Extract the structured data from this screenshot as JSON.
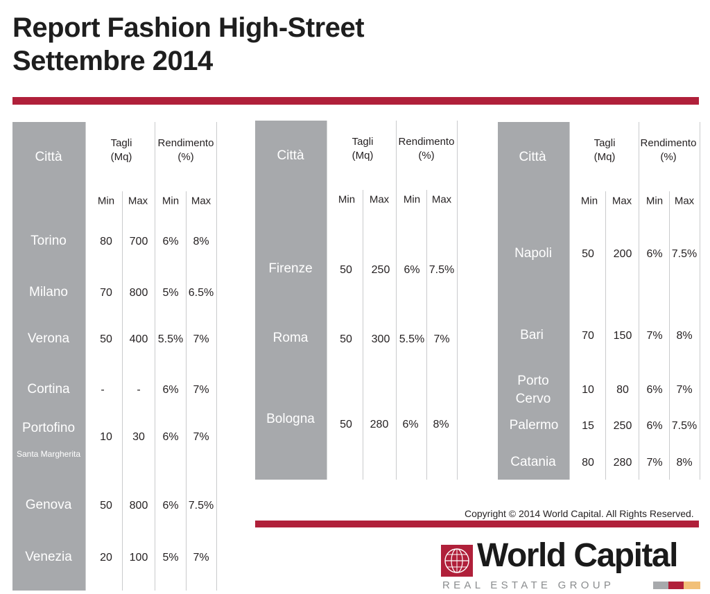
{
  "title": {
    "line1": "Report Fashion High-Street",
    "line2": "Settembre 2014"
  },
  "headers": {
    "citta": "Città",
    "tagli": [
      "Tagli",
      "(Mq)"
    ],
    "rendimento": [
      "Rendimento",
      "(%)"
    ],
    "min": "Min",
    "max": "Max"
  },
  "tables": [
    {
      "rows": [
        {
          "city": "Torino",
          "tagli_min": "80",
          "tagli_max": "700",
          "rend_min": "6%",
          "rend_max": "8%"
        },
        {
          "city": "Milano",
          "tagli_min": "70",
          "tagli_max": "800",
          "rend_min": "5%",
          "rend_max": "6.5%"
        },
        {
          "city": "Verona",
          "tagli_min": "50",
          "tagli_max": "400",
          "rend_min": "5.5%",
          "rend_max": "7%"
        },
        {
          "city": "Cortina",
          "tagli_min": "-",
          "tagli_max": "-",
          "rend_min": "6%",
          "rend_max": "7%"
        },
        {
          "city": "Portofino",
          "city_sub": "Santa Margherita",
          "tagli_min": "10",
          "tagli_max": "30",
          "rend_min": "6%",
          "rend_max": "7%"
        },
        {
          "city": "Genova",
          "tagli_min": "50",
          "tagli_max": "800",
          "rend_min": "6%",
          "rend_max": "7.5%"
        },
        {
          "city": "Venezia",
          "tagli_min": "20",
          "tagli_max": "100",
          "rend_min": "5%",
          "rend_max": "7%"
        }
      ]
    },
    {
      "rows": [
        {
          "city": "Firenze",
          "tagli_min": "50",
          "tagli_max": "250",
          "rend_min": "6%",
          "rend_max": "7.5%"
        },
        {
          "city": "Roma",
          "tagli_min": "50",
          "tagli_max": "300",
          "rend_min": "5.5%",
          "rend_max": "7%"
        },
        {
          "city": "Bologna",
          "tagli_min": "50",
          "tagli_max": "280",
          "rend_min": "6%",
          "rend_max": "8%"
        }
      ]
    },
    {
      "rows": [
        {
          "city": "Napoli",
          "tagli_min": "50",
          "tagli_max": "200",
          "rend_min": "6%",
          "rend_max": "7.5%"
        },
        {
          "city": "Bari",
          "tagli_min": "70",
          "tagli_max": "150",
          "rend_min": "7%",
          "rend_max": "8%"
        },
        {
          "city": "Porto",
          "city_line2": "Cervo",
          "tagli_min": "10",
          "tagli_max": "80",
          "rend_min": "6%",
          "rend_max": "7%"
        },
        {
          "city": "Palermo",
          "tagli_min": "15",
          "tagli_max": "250",
          "rend_min": "6%",
          "rend_max": "7.5%"
        },
        {
          "city": "Catania",
          "tagli_min": "80",
          "tagli_max": "280",
          "rend_min": "7%",
          "rend_max": "8%"
        }
      ]
    }
  ],
  "copyright": "Copyright © 2014 World Capital. All Rights Reserved.",
  "logo": {
    "name": "World Capital",
    "tagline": "REAL ESTATE GROUP",
    "icon": "globe-icon",
    "colors": {
      "brand_red": "#b0203a",
      "grey": "#a7a9ac",
      "gold": "#f2c078"
    }
  }
}
